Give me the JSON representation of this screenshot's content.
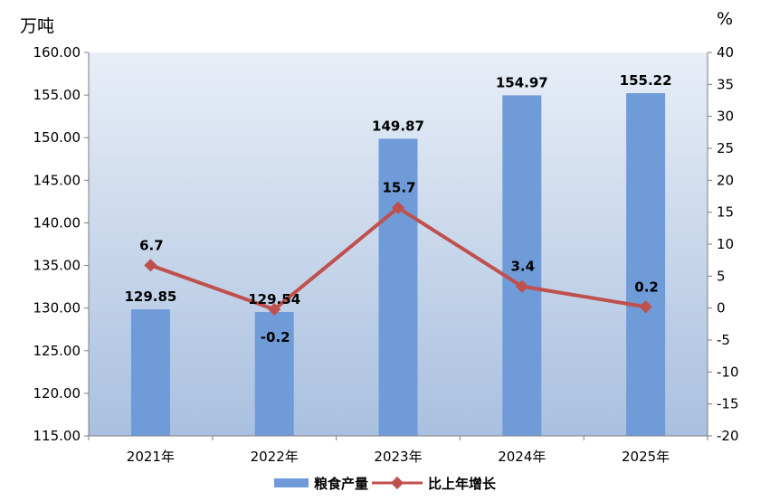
{
  "chart_data": {
    "type": "bar",
    "categories": [
      "2021年",
      "2022年",
      "2023年",
      "2024年",
      "2025年"
    ],
    "series": [
      {
        "name": "粮食产量",
        "kind": "bar",
        "axis": "left",
        "values": [
          129.85,
          129.54,
          149.87,
          154.97,
          155.22
        ],
        "labels": [
          "129.85",
          "129.54",
          "149.87",
          "154.97",
          "155.22"
        ],
        "color": "#6f9bd8"
      },
      {
        "name": "比上年增长",
        "kind": "line",
        "axis": "right",
        "values": [
          6.7,
          -0.2,
          15.7,
          3.4,
          0.2
        ],
        "labels": [
          "6.7",
          "-0.2",
          "15.7",
          "3.4",
          "0.2"
        ],
        "color": "#c0504d"
      }
    ],
    "left_axis": {
      "unit": "万吨",
      "ylim": [
        115,
        160
      ],
      "ticks": [
        "115.00",
        "120.00",
        "125.00",
        "130.00",
        "135.00",
        "140.00",
        "145.00",
        "150.00",
        "155.00",
        "160.00"
      ]
    },
    "right_axis": {
      "unit": "%",
      "ylim": [
        -20,
        40
      ],
      "ticks": [
        "-20",
        "-15",
        "-10",
        "-5",
        "0",
        "5",
        "10",
        "15",
        "20",
        "25",
        "30",
        "35",
        "40"
      ]
    },
    "legend_position": "bottom",
    "grid": false,
    "plot_background": [
      "#e8eef7",
      "#a9c0df"
    ]
  }
}
